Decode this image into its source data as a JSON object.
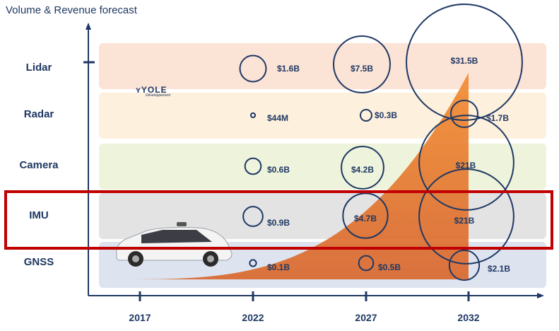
{
  "title": "Volume & Revenue forecast",
  "logo": {
    "text": "YOLE",
    "subtext": "Développement"
  },
  "colors": {
    "axis": "#1f3864",
    "bubble_stroke": "#1f3864",
    "label_text": "#1f3864",
    "highlight_box": "#c00000",
    "area_fill": "#e8722a",
    "band_lidar": "#fbe3d6",
    "band_radar": "#fdf0dc",
    "band_camera": "#eef4dc",
    "band_imu": "#e3e3e3",
    "band_gnss": "#dde3ef"
  },
  "chart_data": {
    "type": "bubble",
    "title": "Volume & Revenue forecast",
    "x_ticks": [
      "2017",
      "2022",
      "2027",
      "2032"
    ],
    "categories": [
      "Lidar",
      "Radar",
      "Camera",
      "IMU",
      "GNSS"
    ],
    "highlighted_category": "IMU",
    "series": [
      {
        "category": "Lidar",
        "points": [
          {
            "year": "2022",
            "value_label": "$1.6B",
            "value_usd_b": 1.6
          },
          {
            "year": "2027",
            "value_label": "$7.5B",
            "value_usd_b": 7.5
          },
          {
            "year": "2032",
            "value_label": "$31.5B",
            "value_usd_b": 31.5
          }
        ]
      },
      {
        "category": "Radar",
        "points": [
          {
            "year": "2022",
            "value_label": "$44M",
            "value_usd_b": 0.044
          },
          {
            "year": "2027",
            "value_label": "$0.3B",
            "value_usd_b": 0.3
          },
          {
            "year": "2032",
            "value_label": "$1.7B",
            "value_usd_b": 1.7
          }
        ]
      },
      {
        "category": "Camera",
        "points": [
          {
            "year": "2022",
            "value_label": "$0.6B",
            "value_usd_b": 0.6
          },
          {
            "year": "2027",
            "value_label": "$4.2B",
            "value_usd_b": 4.2
          },
          {
            "year": "2032",
            "value_label": "$21B",
            "value_usd_b": 21
          }
        ]
      },
      {
        "category": "IMU",
        "points": [
          {
            "year": "2022",
            "value_label": "$0.9B",
            "value_usd_b": 0.9
          },
          {
            "year": "2027",
            "value_label": "$4.7B",
            "value_usd_b": 4.7
          },
          {
            "year": "2032",
            "value_label": "$21B",
            "value_usd_b": 21
          }
        ]
      },
      {
        "category": "GNSS",
        "points": [
          {
            "year": "2022",
            "value_label": "$0.1B",
            "value_usd_b": 0.1
          },
          {
            "year": "2027",
            "value_label": "$0.5B",
            "value_usd_b": 0.5
          },
          {
            "year": "2032",
            "value_label": "$2.1B",
            "value_usd_b": 2.1
          }
        ]
      }
    ]
  }
}
